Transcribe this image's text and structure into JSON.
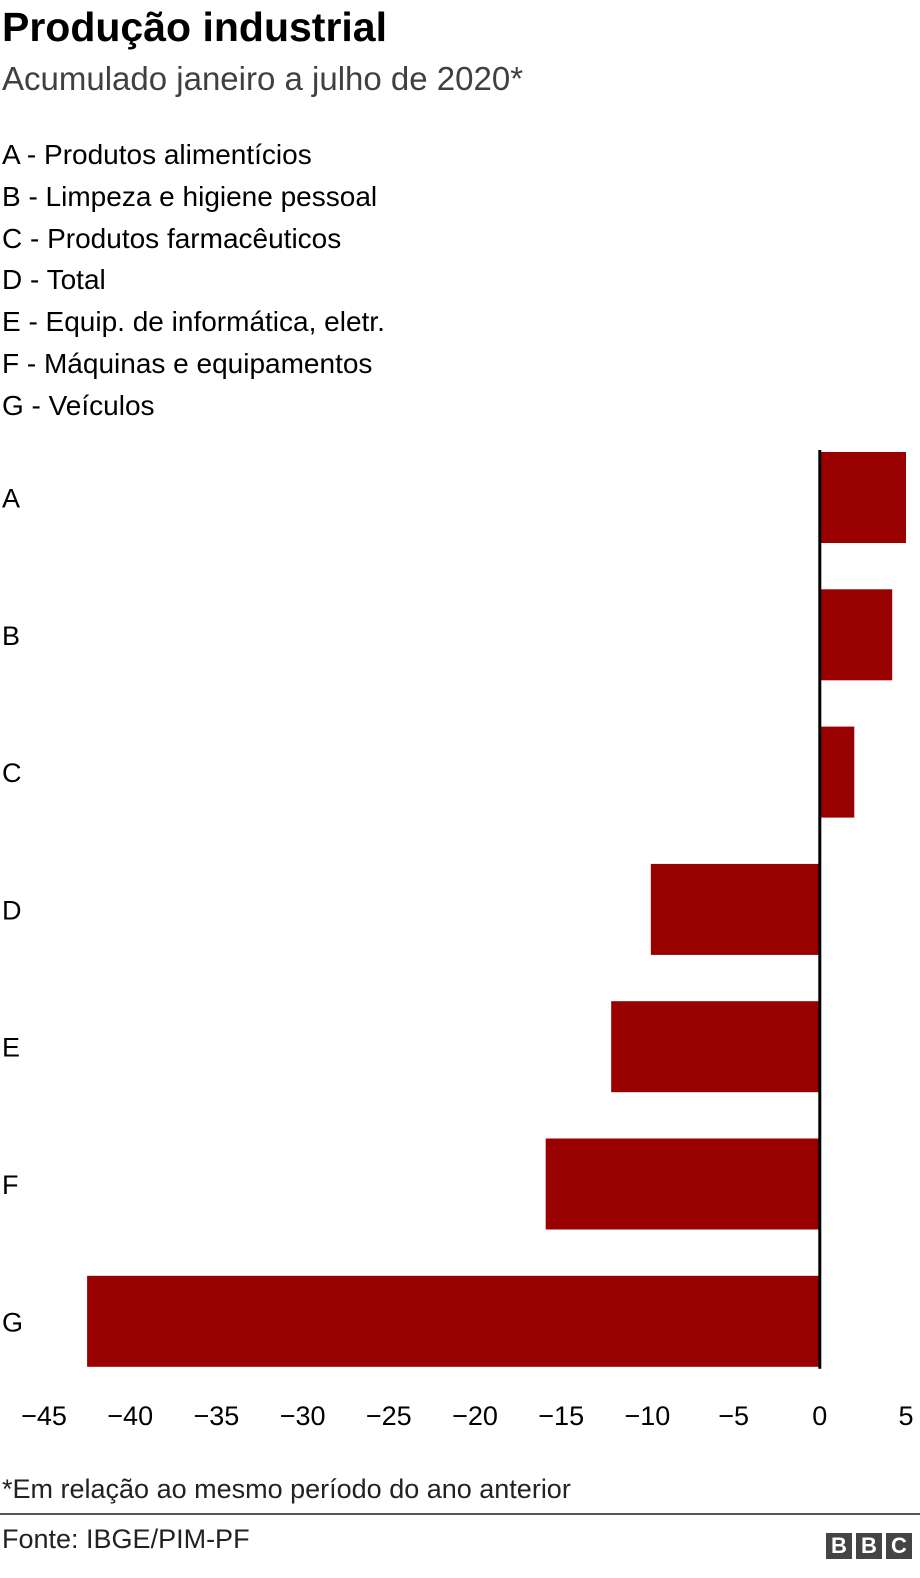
{
  "title": "Produção industrial",
  "subtitle": "Acumulado janeiro a julho de 2020*",
  "legend": [
    "A - Produtos alimentícios",
    "B - Limpeza e higiene pessoal",
    "C - Produtos farmacêuticos",
    "D - Total",
    "E - Equip. de informática, eletr.",
    "F - Máquinas e equipamentos",
    "G - Veículos"
  ],
  "chart_data": {
    "type": "bar",
    "orientation": "horizontal",
    "categories": [
      "A",
      "B",
      "C",
      "D",
      "E",
      "F",
      "G"
    ],
    "values": [
      5.0,
      4.2,
      2.0,
      -9.8,
      -12.1,
      -15.9,
      -42.5
    ],
    "xlim": [
      -45,
      5
    ],
    "x_ticks": [
      -45,
      -40,
      -35,
      -30,
      -25,
      -20,
      -15,
      -10,
      -5,
      0,
      5
    ],
    "x_tick_labels": [
      "−45",
      "−40",
      "−35",
      "−30",
      "−25",
      "−20",
      "−15",
      "−10",
      "−5",
      "0",
      "5"
    ],
    "bar_color": "#990000",
    "grid": false,
    "legend_position": "top"
  },
  "footnote": "*Em relação ao mesmo período do ano anterior",
  "source": "Fonte: IBGE/PIM-PF",
  "brand": [
    "B",
    "B",
    "C"
  ]
}
